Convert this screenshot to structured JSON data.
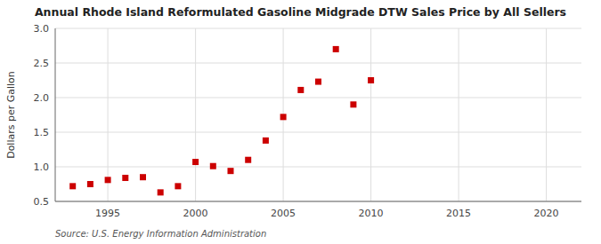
{
  "chart_data": {
    "type": "scatter",
    "title": "Annual Rhode Island Reformulated Gasoline Midgrade DTW Sales Price by All Sellers",
    "ylabel": "Dollars per Gallon",
    "source": "Source: U.S. Energy Information Administration",
    "x": [
      1993,
      1994,
      1995,
      1996,
      1997,
      1998,
      1999,
      2000,
      2001,
      2002,
      2003,
      2004,
      2005,
      2006,
      2007,
      2008,
      2009,
      2010
    ],
    "values": [
      0.72,
      0.75,
      0.81,
      0.84,
      0.85,
      0.63,
      0.72,
      1.07,
      1.01,
      0.94,
      1.1,
      1.38,
      1.72,
      2.11,
      2.23,
      2.7,
      1.9,
      2.25
    ],
    "color": "#cc0000",
    "marker": "square",
    "xlim": [
      1992,
      2022
    ],
    "ylim": [
      0.5,
      3.0
    ],
    "xticks": [
      1995,
      2000,
      2005,
      2010,
      2015,
      2020
    ],
    "yticks": [
      0.5,
      {
        "value": 1.0,
        "label": "1.0"
      },
      1.5,
      {
        "value": 2.0,
        "label": "2.0"
      },
      2.5,
      {
        "value": 3.0,
        "label": "3.0"
      }
    ],
    "grid": true
  }
}
